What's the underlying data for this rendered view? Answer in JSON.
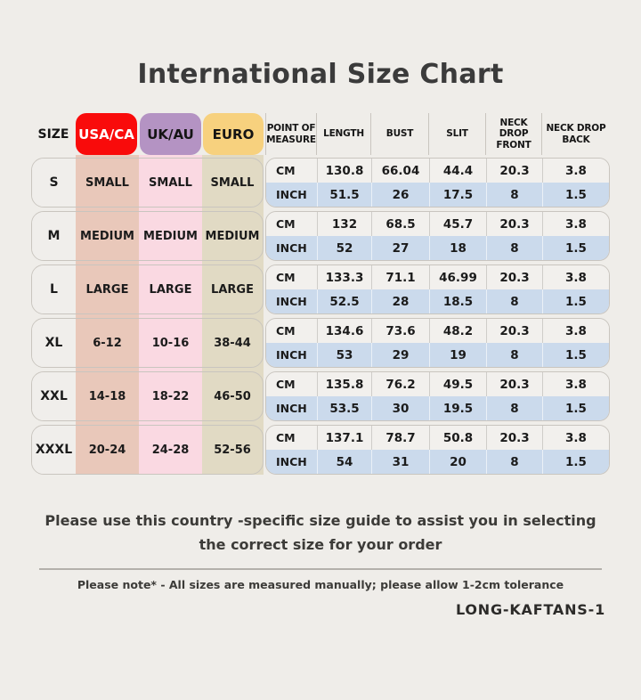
{
  "title": "International Size Chart",
  "colors": {
    "background": "#EFEDE9",
    "title_text": "#3B3B3B",
    "usa_ca_badge": "#F90B0B",
    "uk_au_badge": "#B493C3",
    "euro_badge": "#F7D17E",
    "usa_ca_column": "#E9C8BA",
    "uk_au_column": "#FAD9E2",
    "euro_column": "#E1DAC4",
    "cm_row": "#F2F0ED",
    "inch_row": "#CBDAEC",
    "block_border": "#C9C5BF"
  },
  "table": {
    "size_header": "SIZE",
    "region_headers": [
      {
        "label": "USA/CA"
      },
      {
        "label": "UK/AU"
      },
      {
        "label": "EURO"
      }
    ],
    "measure_headers": [
      "POINT OF MEASURE",
      "LENGTH",
      "BUST",
      "SLIT",
      "NECK DROP FRONT",
      "NECK DROP BACK"
    ],
    "unit_labels": {
      "cm": "CM",
      "inch": "INCH"
    },
    "rows": [
      {
        "size": "S",
        "usa_ca": "SMALL",
        "uk_au": "SMALL",
        "euro": "SMALL",
        "cm": [
          130.8,
          66.04,
          44.4,
          20.3,
          3.8
        ],
        "inch": [
          51.5,
          26,
          17.5,
          8,
          1.5
        ]
      },
      {
        "size": "M",
        "usa_ca": "MEDIUM",
        "uk_au": "MEDIUM",
        "euro": "MEDIUM",
        "cm": [
          132,
          68.5,
          45.7,
          20.3,
          3.8
        ],
        "inch": [
          52,
          27,
          18,
          8,
          1.5
        ]
      },
      {
        "size": "L",
        "usa_ca": "LARGE",
        "uk_au": "LARGE",
        "euro": "LARGE",
        "cm": [
          133.3,
          71.1,
          46.99,
          20.3,
          3.8
        ],
        "inch": [
          52.5,
          28,
          18.5,
          8,
          1.5
        ]
      },
      {
        "size": "XL",
        "usa_ca": "6-12",
        "uk_au": "10-16",
        "euro": "38-44",
        "cm": [
          134.6,
          73.6,
          48.2,
          20.3,
          3.8
        ],
        "inch": [
          53,
          29,
          19,
          8,
          1.5
        ]
      },
      {
        "size": "XXL",
        "usa_ca": "14-18",
        "uk_au": "18-22",
        "euro": "46-50",
        "cm": [
          135.8,
          76.2,
          49.5,
          20.3,
          3.8
        ],
        "inch": [
          53.5,
          30,
          19.5,
          8,
          1.5
        ]
      },
      {
        "size": "XXXL",
        "usa_ca": "20-24",
        "uk_au": "24-28",
        "euro": "52-56",
        "cm": [
          137.1,
          78.7,
          50.8,
          20.3,
          3.8
        ],
        "inch": [
          54,
          31,
          20,
          8,
          1.5
        ]
      }
    ]
  },
  "footer": {
    "guide_line1": "Please use this country -specific size guide to assist you in selecting",
    "guide_line2": "the correct size for your order",
    "note": "Please note* - All sizes are measured manually; please allow 1-2cm tolerance",
    "sku": "LONG-KAFTANS-1"
  }
}
